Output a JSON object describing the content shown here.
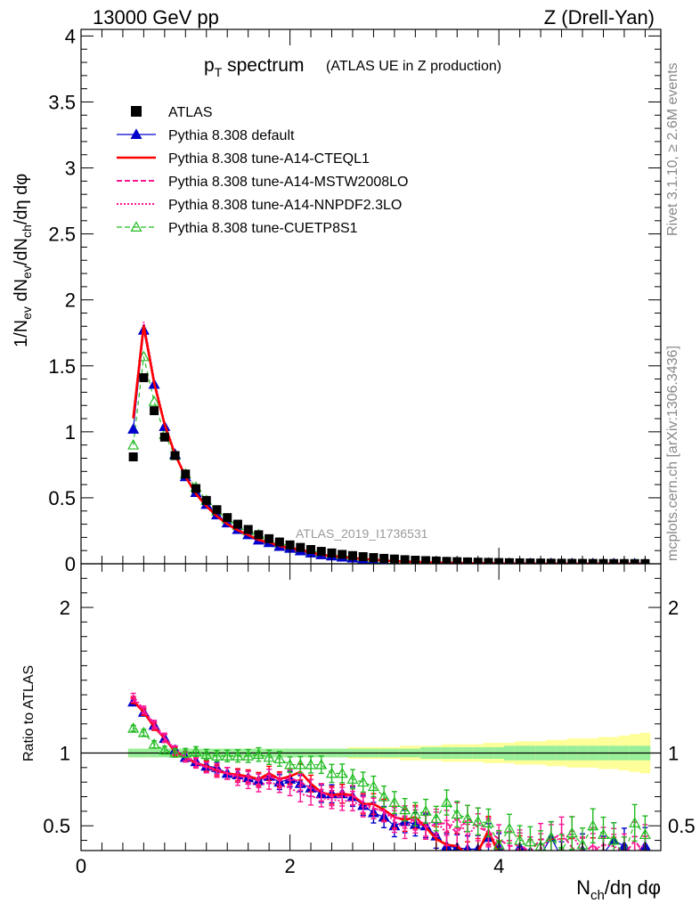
{
  "header": {
    "left": "13000 GeV pp",
    "right": "Z (Drell-Yan)"
  },
  "side_labels": {
    "rivet": "Rivet 3.1.10, ≥ 2.6M events",
    "mcplots": "mcplots.cern.ch [arXiv:1306.3436]"
  },
  "title": {
    "main": "p",
    "main_sub": "T",
    "main_rest": " spectrum",
    "small": "(ATLAS UE in Z production)"
  },
  "watermark": "ATLAS_2019_I1736531",
  "legend": [
    {
      "label": "ATLAS",
      "color": "#000000",
      "marker": "square",
      "line": "none"
    },
    {
      "label": "Pythia 8.308 default",
      "color": "#0000cc",
      "marker": "triangle-filled",
      "line": "solid-thin"
    },
    {
      "label": "Pythia 8.308 tune-A14-CTEQL1",
      "color": "#ff0000",
      "marker": "none",
      "line": "solid-thick"
    },
    {
      "label": "Pythia 8.308 tune-A14-MSTW2008LO",
      "color": "#ff1493",
      "marker": "none",
      "line": "dashed"
    },
    {
      "label": "Pythia 8.308 tune-A14-NNPDF2.3LO",
      "color": "#ff1493",
      "marker": "none",
      "line": "dotted"
    },
    {
      "label": "Pythia 8.308 tune-CUETP8S1",
      "color": "#22bb22",
      "marker": "triangle-open",
      "line": "dashed"
    }
  ],
  "chart_data": {
    "type": "scatter",
    "x_axis": {
      "label_parts": [
        "N",
        "ch",
        "/dη dφ"
      ],
      "range": [
        0,
        5.55
      ],
      "major_ticks": [
        0,
        2,
        4
      ],
      "tick_labels": [
        "0",
        "2",
        "4"
      ]
    },
    "upper": {
      "y_label_parts": [
        "1/N",
        "ev",
        " dN",
        "ev",
        "/dN",
        "ch",
        "/dη dφ"
      ],
      "y_range": [
        0,
        4.05
      ],
      "major_ticks": [
        0,
        0.5,
        1,
        1.5,
        2,
        2.5,
        3,
        3.5,
        4
      ],
      "tick_labels": [
        "0",
        "0.5",
        "1",
        "1.5",
        "2",
        "2.5",
        "3",
        "3.5",
        "4"
      ]
    },
    "ratio": {
      "y_label": "Ratio to ATLAS",
      "y_range": [
        0.33,
        2.3
      ],
      "major_ticks": [
        0.5,
        1,
        2
      ],
      "tick_labels": [
        "0.5",
        "1",
        "2"
      ]
    },
    "x": [
      0.5,
      0.6,
      0.7,
      0.8,
      0.9,
      1.0,
      1.1,
      1.2,
      1.3,
      1.4,
      1.5,
      1.6,
      1.7,
      1.8,
      1.9,
      2.0,
      2.1,
      2.2,
      2.3,
      2.4,
      2.5,
      2.6,
      2.7,
      2.8,
      2.9,
      3.0,
      3.1,
      3.2,
      3.3,
      3.4,
      3.5,
      3.6,
      3.7,
      3.8,
      3.9,
      4.0,
      4.1,
      4.2,
      4.3,
      4.4,
      4.5,
      4.6,
      4.7,
      4.8,
      4.9,
      5.0,
      5.1,
      5.2,
      5.3,
      5.4
    ],
    "atlas_values": [
      0.81,
      1.41,
      1.16,
      0.96,
      0.82,
      0.68,
      0.57,
      0.48,
      0.41,
      0.35,
      0.3,
      0.26,
      0.22,
      0.19,
      0.165,
      0.143,
      0.124,
      0.108,
      0.094,
      0.082,
      0.071,
      0.062,
      0.054,
      0.047,
      0.041,
      0.036,
      0.031,
      0.027,
      0.024,
      0.021,
      0.018,
      0.016,
      0.014,
      0.012,
      0.0105,
      0.0092,
      0.008,
      0.007,
      0.0061,
      0.0053,
      0.0046,
      0.004,
      0.0035,
      0.003,
      0.0026,
      0.0023,
      0.002,
      0.0017,
      0.0015,
      0.0013
    ],
    "band_inner": [
      0.03,
      0.03,
      0.03,
      0.03,
      0.03,
      0.03,
      0.03,
      0.03,
      0.03,
      0.03,
      0.03,
      0.03,
      0.03,
      0.03,
      0.03,
      0.03,
      0.03,
      0.03,
      0.03,
      0.03,
      0.03,
      0.03,
      0.03,
      0.03,
      0.03,
      0.03,
      0.03,
      0.03,
      0.04,
      0.04,
      0.04,
      0.04,
      0.04,
      0.04,
      0.04,
      0.04,
      0.05,
      0.05,
      0.05,
      0.05,
      0.05,
      0.05,
      0.05,
      0.05,
      0.05,
      0.05,
      0.05,
      0.05,
      0.05,
      0.05
    ],
    "band_outer": [
      0.03,
      0.03,
      0.03,
      0.03,
      0.03,
      0.03,
      0.03,
      0.03,
      0.03,
      0.03,
      0.03,
      0.03,
      0.03,
      0.03,
      0.03,
      0.03,
      0.03,
      0.03,
      0.03,
      0.03,
      0.03,
      0.04,
      0.04,
      0.04,
      0.04,
      0.04,
      0.05,
      0.05,
      0.05,
      0.05,
      0.06,
      0.06,
      0.06,
      0.06,
      0.07,
      0.07,
      0.07,
      0.08,
      0.08,
      0.08,
      0.09,
      0.09,
      0.1,
      0.1,
      0.1,
      0.11,
      0.11,
      0.12,
      0.13,
      0.14
    ],
    "series": [
      {
        "key": "default",
        "ratio": [
          1.35,
          1.28,
          1.19,
          1.1,
          1.02,
          0.97,
          0.94,
          0.91,
          0.9,
          0.86,
          0.85,
          0.83,
          0.81,
          0.84,
          0.8,
          0.82,
          0.79,
          0.76,
          0.72,
          0.72,
          0.72,
          0.7,
          0.64,
          0.59,
          0.56,
          0.5,
          0.53,
          0.51,
          0.5,
          0.43,
          0.36,
          0.35,
          0.34,
          0.34,
          0.42,
          0.35,
          0.3,
          0.35,
          0.32,
          0.3,
          0.42,
          0.28,
          0.3,
          0.33,
          0.3,
          0.31,
          0.4,
          0.36,
          0.3,
          0.36
        ]
      },
      {
        "key": "cteql1",
        "ratio": [
          1.36,
          1.28,
          1.18,
          1.1,
          1.01,
          0.97,
          0.93,
          0.91,
          0.88,
          0.86,
          0.85,
          0.84,
          0.82,
          0.86,
          0.82,
          0.84,
          0.87,
          0.79,
          0.73,
          0.71,
          0.72,
          0.71,
          0.65,
          0.65,
          0.61,
          0.56,
          0.54,
          0.56,
          0.49,
          0.41,
          0.37,
          0.36,
          0.3,
          0.32,
          0.47,
          0.3,
          0.3,
          0.33,
          0.3,
          0.3,
          0.3,
          0.3,
          0.3,
          0.3,
          0.3,
          0.3,
          0.3,
          0.3,
          0.3,
          0.3
        ]
      },
      {
        "key": "mstw",
        "ratio": [
          1.37,
          1.29,
          1.19,
          1.1,
          1.02,
          0.97,
          0.93,
          0.9,
          0.89,
          0.86,
          0.84,
          0.83,
          0.81,
          0.84,
          0.81,
          0.83,
          0.8,
          0.76,
          0.73,
          0.7,
          0.7,
          0.71,
          0.66,
          0.62,
          0.6,
          0.55,
          0.56,
          0.53,
          0.49,
          0.51,
          0.52,
          0.45,
          0.55,
          0.49,
          0.46,
          0.41,
          0.36,
          0.37,
          0.32,
          0.41,
          0.4,
          0.45,
          0.35,
          0.3,
          0.37,
          0.3,
          0.32,
          0.3,
          0.4,
          0.3
        ]
      },
      {
        "key": "nnpdf",
        "ratio": [
          1.39,
          1.3,
          1.2,
          1.11,
          1.02,
          0.98,
          0.94,
          0.9,
          0.87,
          0.86,
          0.82,
          0.8,
          0.78,
          0.8,
          0.78,
          0.76,
          0.72,
          0.7,
          0.69,
          0.68,
          0.67,
          0.67,
          0.63,
          0.62,
          0.6,
          0.53,
          0.49,
          0.55,
          0.51,
          0.53,
          0.45,
          0.57,
          0.42,
          0.53,
          0.45,
          0.36,
          0.3,
          0.35,
          0.3,
          0.34,
          0.42,
          0.4,
          0.45,
          0.31,
          0.33,
          0.37,
          0.36,
          0.32,
          0.3,
          0.38
        ]
      },
      {
        "key": "cuetp8s1",
        "ratio": [
          1.17,
          1.14,
          1.06,
          1.02,
          1.0,
          1.0,
          1.01,
          0.99,
          0.98,
          0.98,
          0.98,
          0.98,
          0.99,
          0.97,
          0.96,
          0.92,
          0.92,
          0.92,
          0.92,
          0.86,
          0.86,
          0.82,
          0.8,
          0.77,
          0.7,
          0.66,
          0.61,
          0.58,
          0.6,
          0.55,
          0.66,
          0.58,
          0.55,
          0.53,
          0.52,
          0.37,
          0.48,
          0.4,
          0.39,
          0.36,
          0.42,
          0.33,
          0.45,
          0.37,
          0.5,
          0.44,
          0.4,
          0.3,
          0.52,
          0.44
        ]
      }
    ],
    "mc_upper_values": {
      "default": [
        1.02,
        1.77,
        1.36,
        1.04,
        0.83,
        0.66,
        0.54,
        0.45,
        0.37,
        0.31,
        0.26,
        0.22,
        0.18,
        0.16,
        0.132,
        0.117,
        0.098,
        0.082,
        0.068,
        0.059,
        0.051,
        0.043,
        0.035,
        0.028,
        0.023,
        0.018,
        0.016,
        0.014,
        0.012,
        0.009,
        0.0065,
        0.0056,
        0.0048,
        0.0041,
        0.0044,
        0.0032,
        0.0024,
        0.0025,
        0.002,
        0.0016,
        0.0019,
        0.0011,
        0.0011,
        0.001,
        0.0008,
        0.0007,
        0.0008,
        0.0006,
        0.0005,
        0.0005
      ],
      "cuetp8s1": [
        0.9,
        1.57,
        1.23,
        0.98,
        0.82,
        0.68,
        0.58,
        0.48,
        0.4,
        0.34,
        0.29,
        0.25,
        0.22,
        0.18,
        0.158,
        0.132,
        0.114,
        0.099,
        0.086,
        0.071,
        0.061,
        0.051,
        0.043,
        0.036,
        0.029,
        0.024,
        0.019,
        0.016,
        0.014,
        0.012,
        0.012,
        0.009,
        0.0077,
        0.0064,
        0.0055,
        0.0034,
        0.0038,
        0.0028,
        0.0024,
        0.0019,
        0.0019,
        0.0013,
        0.0016,
        0.0011,
        0.0013,
        0.001,
        0.0008,
        0.0005,
        0.0008,
        0.0006
      ]
    }
  }
}
